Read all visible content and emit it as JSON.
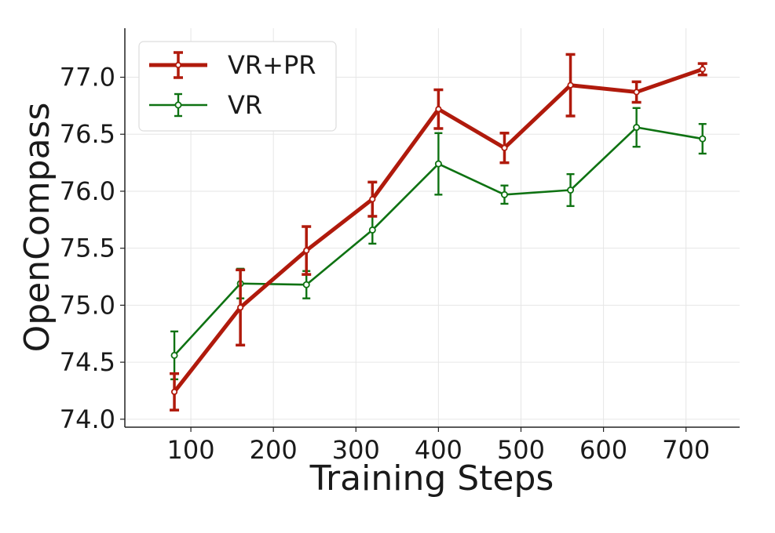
{
  "chart_data": {
    "type": "line",
    "title": "",
    "xlabel": "Training Steps",
    "ylabel": "OpenCompass",
    "xlim": [
      20,
      765
    ],
    "ylim": [
      73.93,
      77.43
    ],
    "xticks": [
      100,
      200,
      300,
      400,
      500,
      600,
      700
    ],
    "xtick_labels": [
      "100",
      "200",
      "300",
      "400",
      "500",
      "600",
      "700"
    ],
    "yticks": [
      74.0,
      74.5,
      75.0,
      75.5,
      76.0,
      76.5,
      77.0
    ],
    "ytick_labels": [
      "74.0",
      "74.5",
      "75.0",
      "75.5",
      "76.0",
      "76.5",
      "77.0"
    ],
    "grid": true,
    "legend_position": "top-left",
    "x": [
      80,
      160,
      240,
      320,
      400,
      480,
      560,
      640,
      720
    ],
    "series": [
      {
        "name": "VR+PR",
        "color": "#b01a0c",
        "values": [
          74.24,
          74.98,
          75.48,
          75.93,
          76.72,
          76.38,
          76.93,
          76.87,
          77.07
        ],
        "errors": [
          0.16,
          0.33,
          0.21,
          0.15,
          0.17,
          0.13,
          0.27,
          0.09,
          0.05
        ]
      },
      {
        "name": "VR",
        "color": "#0e7212",
        "values": [
          74.56,
          75.19,
          75.18,
          75.66,
          76.24,
          75.97,
          76.01,
          76.56,
          76.46
        ],
        "errors": [
          0.21,
          0.13,
          0.12,
          0.12,
          0.27,
          0.08,
          0.14,
          0.17,
          0.13
        ]
      }
    ]
  }
}
